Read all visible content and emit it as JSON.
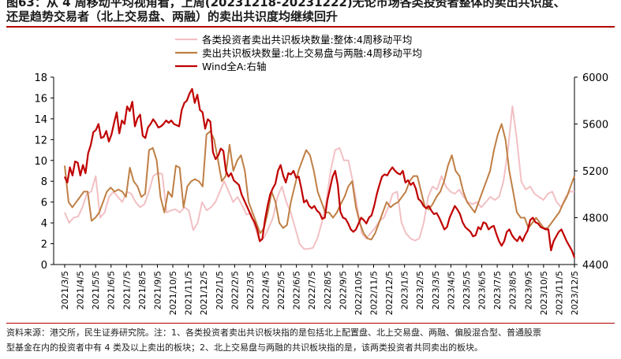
{
  "title": {
    "line1": "图63：从 4 周移动平均视角看，上周(20231218-20231222)无论市场各类投资者整体的卖出共识度、",
    "line2": "还是趋势交易者（北上交易盘、两融）的卖出共识度均继续回升"
  },
  "source": {
    "line1": "资料来源：港交所，民生证券研究院。注：1、各类投资者卖出共识板块指的是包括北上配置盘、北上交易盘、两融、偏股混合型、普通股票",
    "line2": "型基金在内的投资者中有 4 类及以上卖出的板块；2、北上交易盘与两融的共识板块指的是，该两类投资者共同卖出的板块。"
  },
  "colors": {
    "overall": "#f2c0c4",
    "north_margin": "#bf7f45",
    "wind": "#c00000",
    "axis": "#000000",
    "title_rule": "#b30000"
  },
  "chart_data": {
    "type": "line",
    "x_tick_labels": [
      "2021/3/5",
      "2021/4/5",
      "2021/5/5",
      "2021/6/5",
      "2021/7/5",
      "2021/8/5",
      "2021/9/5",
      "2021/10/5",
      "2021/11/5",
      "2021/12/5",
      "2022/1/5",
      "2022/2/5",
      "2022/3/5",
      "2022/4/5",
      "2022/5/5",
      "2022/6/5",
      "2022/7/5",
      "2022/8/5",
      "2022/9/5",
      "2022/10/5",
      "2022/11/5",
      "2022/12/5",
      "2023/1/5",
      "2023/2/5",
      "2023/3/5",
      "2023/4/5",
      "2023/5/5",
      "2023/6/5",
      "2023/7/5",
      "2023/8/5",
      "2023/9/5",
      "2023/10/5",
      "2023/11/5",
      "2023/12/5"
    ],
    "y_left": {
      "min": 0,
      "max": 18,
      "step": 2,
      "ticks": [
        "0",
        "2",
        "4",
        "6",
        "8",
        "10",
        "12",
        "14",
        "16",
        "18"
      ]
    },
    "y_right": {
      "min": 4400,
      "max": 6000,
      "step": 400,
      "ticks": [
        "4400",
        "4800",
        "5200",
        "5600",
        "6000"
      ]
    },
    "series": [
      {
        "name": "各类投资者卖出共识板块数量:整体:4周移动平均",
        "axis": "left",
        "values": [
          5,
          4,
          4.5,
          4.6,
          5.5,
          6.8,
          7,
          8.5,
          4.5,
          5,
          6.5,
          7,
          6.5,
          6,
          7,
          6.8,
          6,
          5.5,
          5.8,
          7,
          8.5,
          8.8,
          8.7,
          5,
          5.2,
          5.3,
          5,
          5.5,
          5.2,
          3.3,
          4,
          6,
          5.2,
          5.5,
          6,
          7,
          8,
          7,
          6,
          6.5,
          5.7,
          4.8,
          4.9,
          3.5,
          2.2,
          2.6,
          3.5,
          4.5,
          6.5,
          7.5,
          6,
          5,
          3.5,
          2,
          1.5,
          1.5,
          1.6,
          2.5,
          4,
          6,
          9,
          11,
          11.2,
          10,
          10,
          8,
          5.5,
          3,
          2.5,
          3,
          3.5,
          4.2,
          4.5,
          5.5,
          6.8,
          7,
          4,
          3,
          2.5,
          2.3,
          2.5,
          4,
          6.5,
          7.5,
          7.2,
          8.5,
          7.5,
          7,
          6.8,
          7.2,
          6.5,
          6,
          5.8,
          6,
          5.5,
          6,
          6.5,
          6.2,
          6.5,
          8,
          11,
          15.2,
          12,
          8,
          7.2,
          7.5,
          6.8,
          6.5,
          6.2,
          6.8,
          7,
          6,
          5.5,
          6.5,
          7,
          7
        ]
      },
      {
        "name": "卖出共识板块数量:北上交易盘与两融:4周移动平均",
        "axis": "left",
        "values": [
          9.5,
          6,
          5.5,
          6,
          6.5,
          7,
          7,
          4.2,
          4.5,
          5,
          6,
          7,
          7.4,
          7,
          7.2,
          7,
          6.5,
          9.3,
          8,
          7.5,
          6.5,
          6.8,
          11,
          11.2,
          10,
          6.5,
          5,
          7,
          6.5,
          9.5,
          9.3,
          5.5,
          7.5,
          8,
          8.2,
          8,
          7.5,
          12.5,
          12.8,
          12,
          10,
          8,
          8.5,
          11.5,
          9,
          10,
          10.5,
          9,
          6,
          5,
          4,
          3,
          3.5,
          5,
          7,
          6,
          4,
          3.5,
          3.8,
          6,
          7.5,
          9,
          10,
          11,
          10.5,
          9,
          7,
          6,
          5,
          5,
          4.5,
          5,
          5.8,
          6.5,
          7.5,
          8,
          5.5,
          4,
          3,
          2.5,
          2.4,
          3,
          4,
          5,
          6,
          5.5,
          5.8,
          6,
          6.5,
          7,
          8,
          8.5,
          8.5,
          7,
          5.5,
          5.3,
          5.8,
          6.5,
          7,
          8,
          9.5,
          10.5,
          9,
          8.5,
          7,
          6,
          5.5,
          5,
          6,
          7,
          8,
          9,
          11,
          12.5,
          13.5,
          12,
          9,
          7,
          5,
          4.5,
          4.5,
          3.5,
          4,
          4.5,
          4,
          3.5,
          3.5,
          4,
          4.5,
          5,
          5.8,
          6.5,
          7.5,
          8.5
        ]
      },
      {
        "name": "Wind全A:右轴",
        "axis": "right",
        "values": [
          5150,
          5100,
          5230,
          5160,
          5280,
          5270,
          5160,
          5250,
          5180,
          5350,
          5420,
          5530,
          5550,
          5600,
          5480,
          5490,
          5540,
          5450,
          5510,
          5610,
          5700,
          5520,
          5630,
          5600,
          5750,
          5710,
          5790,
          5580,
          5650,
          5680,
          5500,
          5480,
          5570,
          5600,
          5640,
          5610,
          5570,
          5580,
          5600,
          5630,
          5610,
          5630,
          5600,
          5590,
          5580,
          5720,
          5780,
          5800,
          5860,
          5900,
          5780,
          5850,
          5720,
          5700,
          5560,
          5640,
          5620,
          5360,
          5300,
          5330,
          5390,
          5370,
          5200,
          5150,
          5180,
          5120,
          5100,
          5080,
          5000,
          4950,
          4900,
          4850,
          4800,
          4760,
          4700,
          4600,
          4620,
          4780,
          4900,
          5000,
          5050,
          5090,
          5200,
          5250,
          5160,
          5100,
          5180,
          5170,
          5200,
          5140,
          5150,
          5050,
          4930,
          4950,
          4900,
          4880,
          4900,
          4860,
          4840,
          4790,
          4800,
          4950,
          5050,
          5150,
          5200,
          5080,
          4850,
          4800,
          4790,
          4750,
          4700,
          4680,
          4700,
          4750,
          4800,
          4780,
          4750,
          4800,
          4820,
          4900,
          5000,
          5080,
          5150,
          5170,
          5160,
          5200,
          5230,
          5200,
          5180,
          5170,
          5200,
          5100,
          5120,
          5080,
          5100,
          5050,
          4960,
          4940,
          4900,
          4880,
          4900,
          4860,
          4830,
          4840,
          4800,
          4750,
          4700,
          4720,
          4800,
          4850,
          4900,
          4870,
          4830,
          4760,
          4720,
          4700,
          4680,
          4640,
          4650,
          4720,
          4700,
          4760,
          4750,
          4700,
          4720,
          4730,
          4660,
          4600,
          4560,
          4600,
          4680,
          4700,
          4650,
          4620,
          4600,
          4640,
          4600,
          4650,
          4690,
          4780,
          4800,
          4760,
          4750,
          4720,
          4710,
          4700,
          4700,
          4520,
          4600,
          4640,
          4680,
          4700,
          4650,
          4600,
          4560,
          4520,
          4460
        ]
      }
    ]
  }
}
